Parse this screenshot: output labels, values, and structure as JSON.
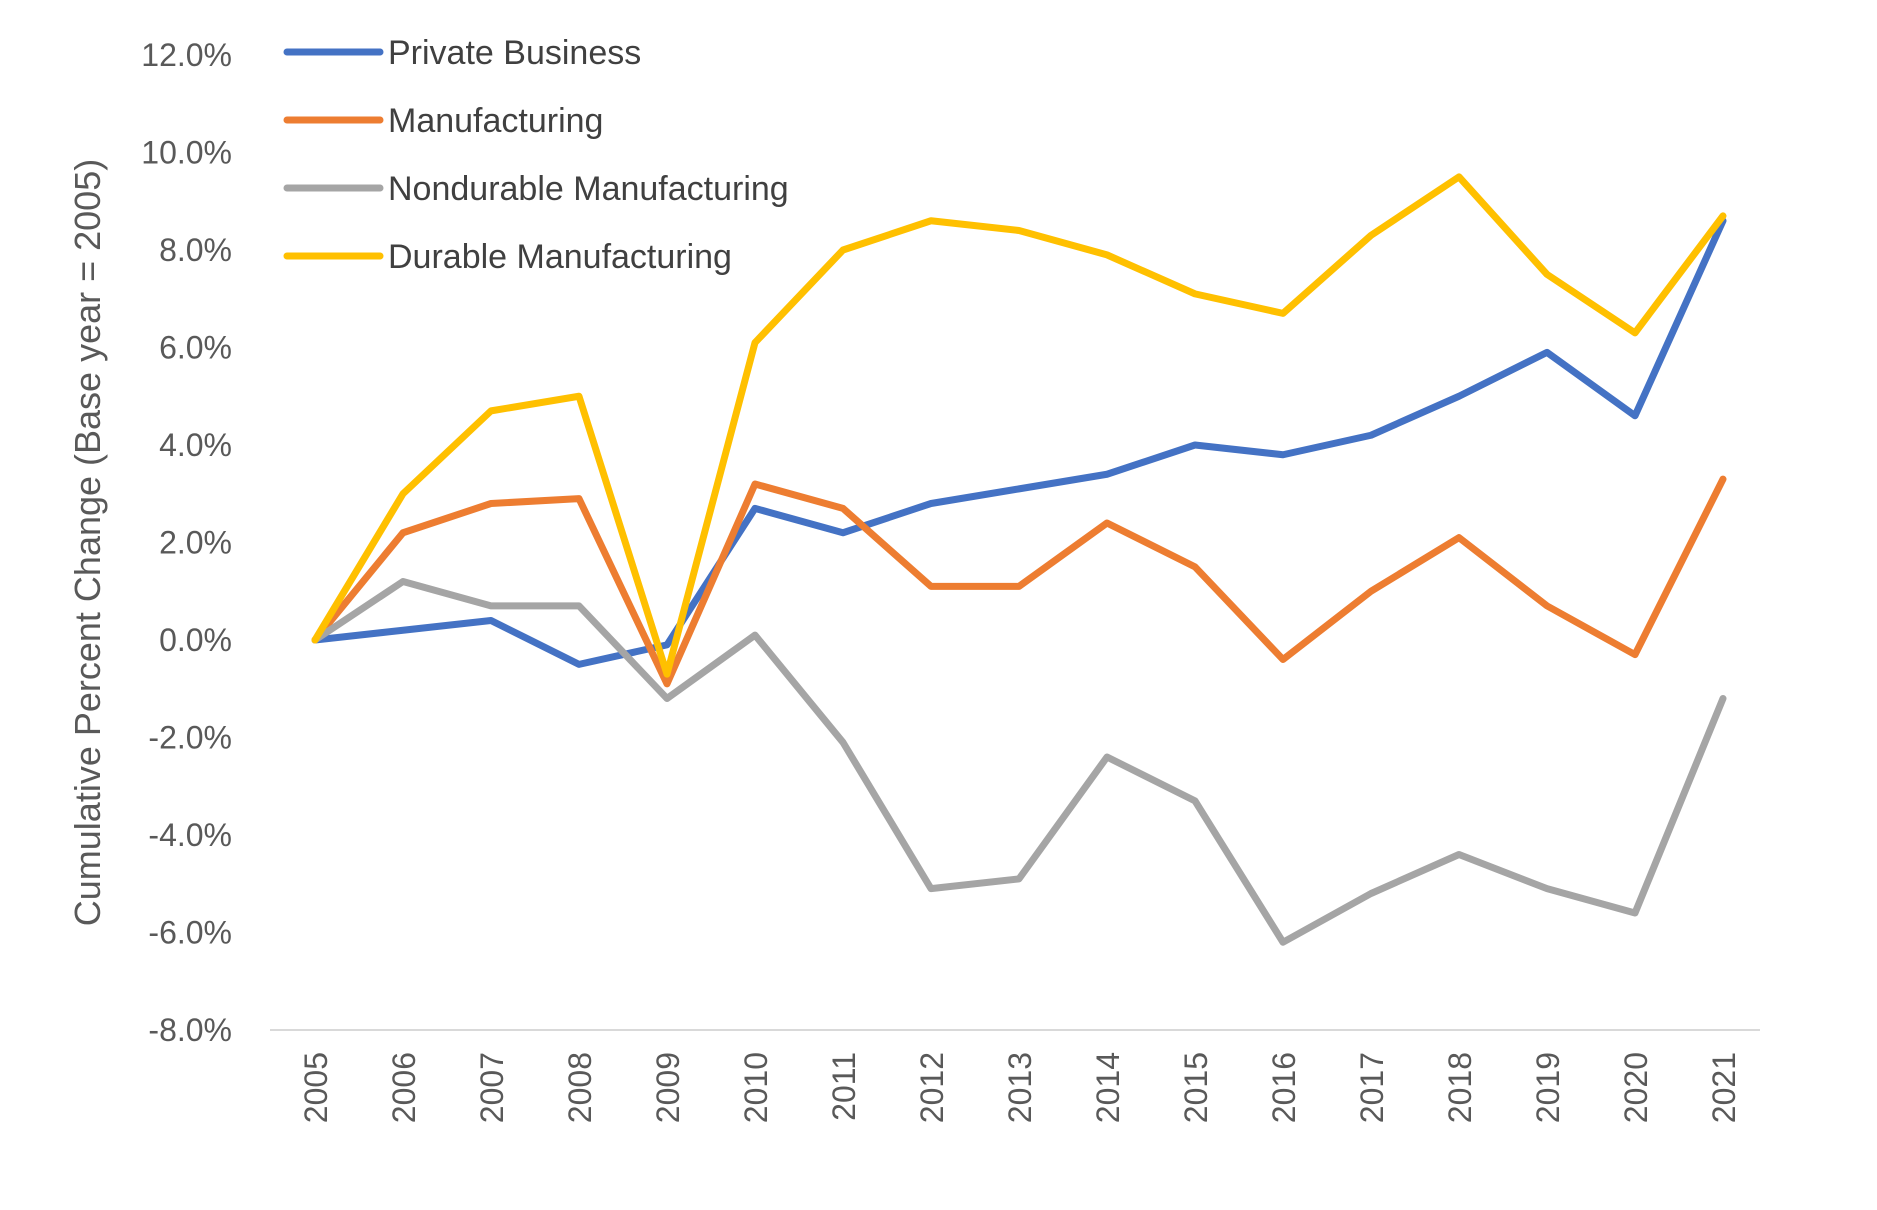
{
  "chart_data": {
    "type": "line",
    "title": "",
    "xlabel": "",
    "ylabel": "Cumulative Percent Change (Base year = 2005)",
    "ylim": [
      -8.0,
      12.0
    ],
    "yticks": [
      "12.0%",
      "10.0%",
      "8.0%",
      "6.0%",
      "4.0%",
      "2.0%",
      "0.0%",
      "-2.0%",
      "-4.0%",
      "-6.0%",
      "-8.0%"
    ],
    "ytick_values": [
      12,
      10,
      8,
      6,
      4,
      2,
      0,
      -2,
      -4,
      -6,
      -8
    ],
    "categories": [
      "2005",
      "2006",
      "2007",
      "2008",
      "2009",
      "2010",
      "2011",
      "2012",
      "2013",
      "2014",
      "2015",
      "2016",
      "2017",
      "2018",
      "2019",
      "2020",
      "2021"
    ],
    "legend_position": "top-left",
    "grid": false,
    "series": [
      {
        "name": "Private Business",
        "color": "#4472C4",
        "values": [
          0.0,
          0.2,
          0.4,
          -0.5,
          -0.1,
          2.7,
          2.2,
          2.8,
          3.1,
          3.4,
          4.0,
          3.8,
          4.2,
          5.0,
          5.9,
          4.6,
          8.6
        ]
      },
      {
        "name": "Manufacturing",
        "color": "#ED7D31",
        "values": [
          0.0,
          2.2,
          2.8,
          2.9,
          -0.9,
          3.2,
          2.7,
          1.1,
          1.1,
          2.4,
          1.5,
          -0.4,
          1.0,
          2.1,
          0.7,
          -0.3,
          3.3
        ]
      },
      {
        "name": "Nondurable Manufacturing",
        "color": "#A5A5A5",
        "values": [
          0.0,
          1.2,
          0.7,
          0.7,
          -1.2,
          0.1,
          -2.1,
          -5.1,
          -4.9,
          -2.4,
          -3.3,
          -6.2,
          -5.2,
          -4.4,
          -5.1,
          -5.6,
          -1.2
        ]
      },
      {
        "name": "Durable Manufacturing",
        "color": "#FFC000",
        "values": [
          0.0,
          3.0,
          4.7,
          5.0,
          -0.7,
          6.1,
          8.0,
          8.6,
          8.4,
          7.9,
          7.1,
          6.7,
          8.3,
          9.5,
          7.5,
          6.3,
          8.7
        ]
      }
    ]
  }
}
